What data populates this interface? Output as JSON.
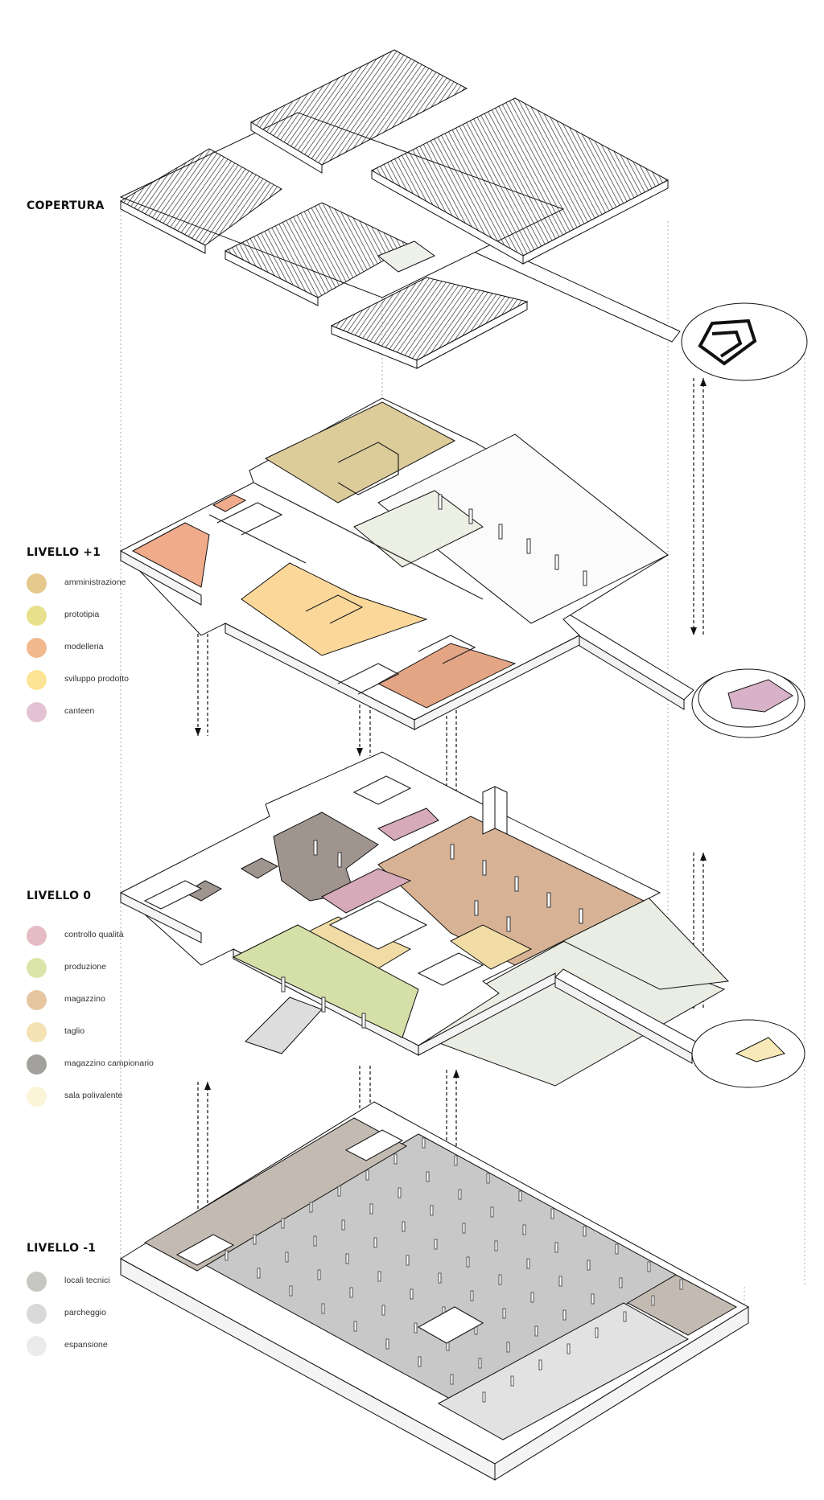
{
  "levels": [
    {
      "title": "COPERTURA",
      "legend": []
    },
    {
      "title": "LIVELLO +1",
      "legend": [
        {
          "label": "amministrazione",
          "color": "#e5c98c"
        },
        {
          "label": "prototipia",
          "color": "#e8e08c"
        },
        {
          "label": "modelleria",
          "color": "#f2b98e"
        },
        {
          "label": "sviluppo prodotto",
          "color": "#fde495"
        },
        {
          "label": "canteen",
          "color": "#e3c3d3"
        }
      ]
    },
    {
      "title": "LIVELLO 0",
      "legend": [
        {
          "label": "controllo qualità",
          "color": "#e5bcc5"
        },
        {
          "label": "produzione",
          "color": "#dce5a9"
        },
        {
          "label": "magazzino",
          "color": "#e6c6a0"
        },
        {
          "label": "taglio",
          "color": "#f4e2b3"
        },
        {
          "label": "magazzino campionario",
          "color": "#a3a19d"
        },
        {
          "label": "sala polivalente",
          "color": "#fbf4d8"
        }
      ]
    },
    {
      "title": "LIVELLO -1",
      "legend": [
        {
          "label": "locali tecnici",
          "color": "#c6c7c2"
        },
        {
          "label": "parcheggio",
          "color": "#d9d9d9"
        },
        {
          "label": "espansione",
          "color": "#ebebeb"
        }
      ]
    }
  ],
  "plan_fills": {
    "plus1": {
      "admin": "#dccc9a",
      "model": "#f0ab8b",
      "sviluppo": "#fbd89a",
      "lab": "#e4a585",
      "canteen": "#d8b2c8",
      "empty": "#fbfbfb",
      "green": "#ecefe3"
    },
    "zero": {
      "prod": "#d5dfa8",
      "magazzino": "#d8b294",
      "taglio": "#f1dca6",
      "campionario": "#9f958e",
      "qualita": "#d6aab8",
      "yard": "#e9ede3"
    },
    "minus1": {
      "tecnici": "#c3bbb2",
      "parcheggio": "#c8c8c8",
      "espansione": "#e2e2e2"
    }
  }
}
